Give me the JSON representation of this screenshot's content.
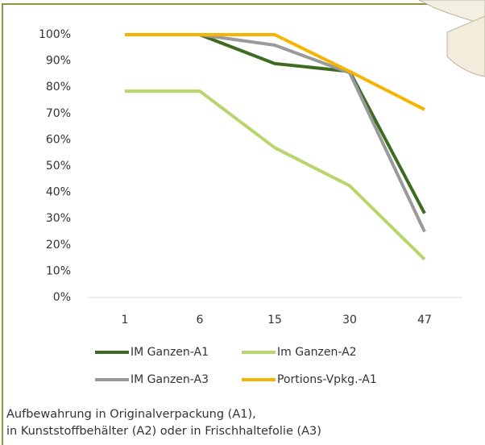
{
  "chart_data": {
    "type": "line",
    "categories": [
      "1",
      "6",
      "15",
      "30",
      "47"
    ],
    "series": [
      {
        "name": "IM Ganzen-A1",
        "color": "#3e6b22",
        "values": [
          100,
          100,
          89,
          86,
          32
        ]
      },
      {
        "name": "Im Ganzen-A2",
        "color": "#b7d66c",
        "values": [
          78.5,
          78.5,
          57,
          42.5,
          14.5
        ]
      },
      {
        "name": "IM Ganzen-A3",
        "color": "#9a9a9a",
        "values": [
          100,
          100,
          96,
          85.5,
          25
        ]
      },
      {
        "name": "Portions-Vpkg.-A1",
        "color": "#f5b400",
        "values": [
          100,
          100,
          100,
          86,
          71.5
        ]
      }
    ],
    "ylim": [
      0,
      100
    ],
    "yticks": [
      {
        "value": 0,
        "label": "0%"
      },
      {
        "value": 10,
        "label": "10%"
      },
      {
        "value": 20,
        "label": "20%"
      },
      {
        "value": 30,
        "label": "30%"
      },
      {
        "value": 40,
        "label": "40%"
      },
      {
        "value": 50,
        "label": "50%"
      },
      {
        "value": 60,
        "label": "60%"
      },
      {
        "value": 70,
        "label": "70%"
      },
      {
        "value": 80,
        "label": "80%"
      },
      {
        "value": 90,
        "label": "90%"
      },
      {
        "value": 100,
        "label": "100%"
      }
    ],
    "caption": [
      "Aufbewahrung in Originalverpackung (A1),",
      "in Kunststoffbehälter (A2) oder in Frischhaltefolie (A3)"
    ]
  }
}
